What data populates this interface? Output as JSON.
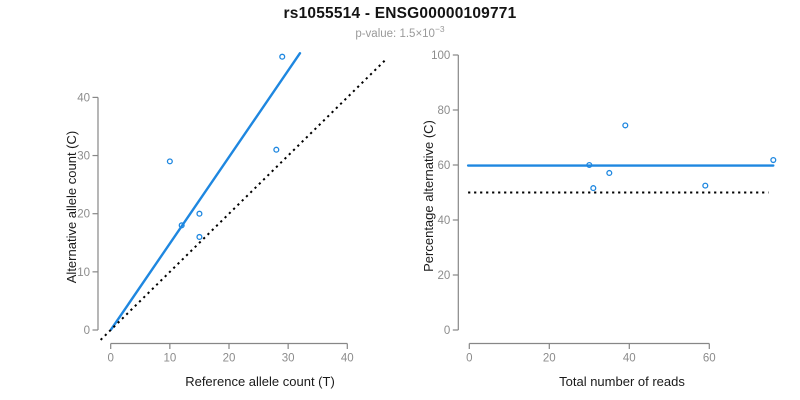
{
  "header": {
    "title": "rs1055514 - ENSG00000109771",
    "pvalue_label": "p-value:",
    "pvalue_mantissa": "1.5×10",
    "pvalue_exponent": "−3"
  },
  "colors": {
    "accent": "#1E87E0",
    "axis": "#878787",
    "tick_label": "#8c8c8c",
    "axis_title": "#1a1a1a",
    "title": "#141414",
    "subtitle": "#9a9a9a",
    "dotted": "#000000"
  },
  "chart_data": [
    {
      "type": "scatter",
      "name": "allele-counts",
      "xlabel": "Reference allele count (T)",
      "ylabel": "Alternative allele count (C)",
      "xticks": [
        0,
        10,
        20,
        30,
        40
      ],
      "yticks": [
        0,
        10,
        20,
        30,
        40
      ],
      "xlim": [
        -1.8,
        46.8
      ],
      "ylim": [
        -1.8,
        47.5
      ],
      "grid": false,
      "points": [
        [
          10,
          29
        ],
        [
          12,
          18
        ],
        [
          15,
          20
        ],
        [
          15,
          16
        ],
        [
          28,
          31
        ],
        [
          29,
          47
        ]
      ],
      "lines": [
        {
          "name": "fit-line",
          "style": "solid",
          "role": "accent",
          "slope": 1.49,
          "intercept": 0,
          "x1": 0.05,
          "y1": 0.07,
          "x2": 32,
          "y2": 47.6
        },
        {
          "name": "identity-line",
          "style": "dotted",
          "role": "dotted",
          "slope": 1,
          "intercept": 0,
          "x1": -1.7,
          "y1": -1.7,
          "x2": 46.7,
          "y2": 46.7
        }
      ]
    },
    {
      "type": "scatter",
      "name": "percentage-vs-reads",
      "xlabel": "Total number of reads",
      "ylabel": "Percentage alternative (C)",
      "xticks": [
        0,
        20,
        40,
        60
      ],
      "yticks": [
        0,
        20,
        40,
        60,
        80,
        100
      ],
      "xlim": [
        -3,
        79
      ],
      "ylim": [
        -5,
        105
      ],
      "grid": false,
      "points": [
        [
          39,
          74.4
        ],
        [
          30,
          60
        ],
        [
          35,
          57.1
        ],
        [
          31,
          51.6
        ],
        [
          59,
          52.5
        ],
        [
          76,
          61.8
        ]
      ],
      "lines": [
        {
          "name": "mean-line",
          "style": "solid",
          "role": "accent",
          "value": 59.8,
          "x1": -0.3,
          "y1": 59.8,
          "x2": 76,
          "y2": 59.8
        },
        {
          "name": "null-line",
          "style": "dotted",
          "role": "dotted",
          "value": 50,
          "x1": -0.3,
          "y1": 50,
          "x2": 74.8,
          "y2": 50
        }
      ]
    }
  ]
}
